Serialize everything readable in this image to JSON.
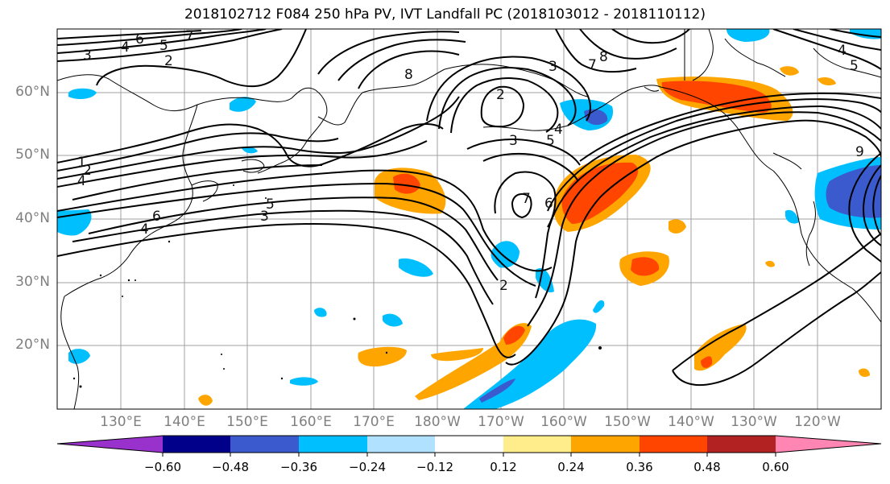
{
  "title": "2018102712 F084 250 hPa PV, IVT Landfall PC (2018103012 - 2018110112)",
  "latitude_labels": [
    "60°N",
    "50°N",
    "40°N",
    "30°N",
    "20°N"
  ],
  "longitude_labels": [
    "130°E",
    "140°E",
    "150°E",
    "160°E",
    "170°E",
    "180°W",
    "170°W",
    "160°W",
    "150°W",
    "140°W",
    "130°W",
    "120°W"
  ],
  "colorbar": {
    "tick_labels": [
      "−0.60",
      "−0.48",
      "−0.36",
      "−0.24",
      "−0.12",
      "0.12",
      "0.24",
      "0.36",
      "0.48",
      "0.60"
    ],
    "colors": [
      "#9932cc",
      "#00008b",
      "#3a5acd",
      "#00bfff",
      "#b0e2ff",
      "#ffffff",
      "#ffec8b",
      "#ffa500",
      "#ff4500",
      "#b22222",
      "#ff85b2"
    ]
  },
  "contour_labels": [
    "6",
    "5",
    "4",
    "3",
    "2",
    "7",
    "8",
    "2",
    "3",
    "5",
    "4",
    "3",
    "1",
    "2",
    "4",
    "6",
    "4",
    "5",
    "3",
    "7",
    "6",
    "7",
    "8",
    "4",
    "5",
    "9",
    "2"
  ],
  "colors": {
    "contour": "#000000",
    "coastline": "#000000",
    "gridline": "#a0a0a0",
    "axis_label": "#7f7f7f"
  }
}
